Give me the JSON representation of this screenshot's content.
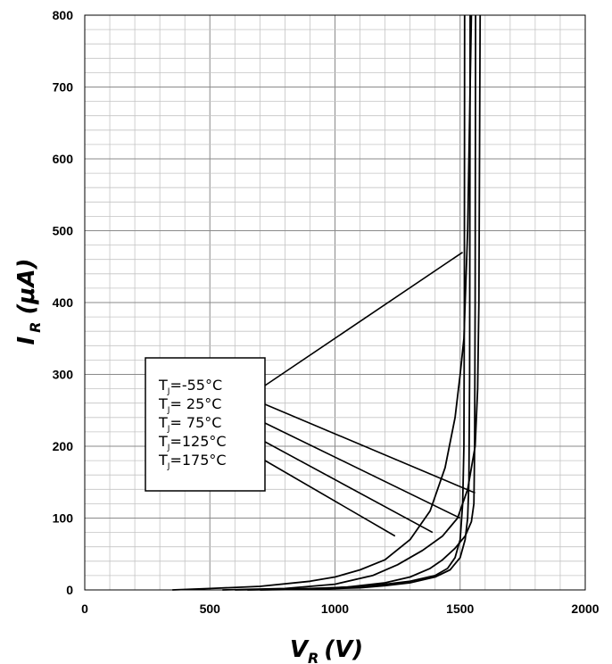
{
  "chart_data": {
    "type": "line",
    "xlabel": {
      "main": "V",
      "sub": "R",
      "unit": "(V)"
    },
    "ylabel": {
      "main": "I",
      "sub": "R",
      "unit": "(μA)"
    },
    "xlim": [
      0,
      2000
    ],
    "ylim": [
      0,
      800
    ],
    "x_ticks": [
      "0",
      "500",
      "1000",
      "1500",
      "2000"
    ],
    "y_ticks": [
      "0",
      "100",
      "200",
      "300",
      "400",
      "500",
      "600",
      "700",
      "800"
    ],
    "grid": {
      "major": true,
      "minor": true,
      "x_minor_step": 100,
      "y_minor_step": 20
    },
    "legend_position": "left-center",
    "series": [
      {
        "name_main": "T",
        "name_sub": "J",
        "name_rest": "=-55°C",
        "points": [
          [
            600,
            0
          ],
          [
            800,
            1
          ],
          [
            1000,
            3
          ],
          [
            1100,
            5
          ],
          [
            1200,
            8
          ],
          [
            1300,
            12
          ],
          [
            1400,
            20
          ],
          [
            1450,
            30
          ],
          [
            1480,
            45
          ],
          [
            1500,
            70
          ],
          [
            1510,
            120
          ],
          [
            1515,
            200
          ],
          [
            1517,
            400
          ],
          [
            1518,
            800
          ]
        ]
      },
      {
        "name_main": "T",
        "name_sub": "J",
        "name_rest": "= 25°C",
        "points": [
          [
            700,
            0
          ],
          [
            900,
            1
          ],
          [
            1100,
            3
          ],
          [
            1200,
            6
          ],
          [
            1300,
            10
          ],
          [
            1400,
            18
          ],
          [
            1460,
            28
          ],
          [
            1500,
            45
          ],
          [
            1520,
            70
          ],
          [
            1530,
            100
          ],
          [
            1535,
            150
          ],
          [
            1538,
            300
          ],
          [
            1540,
            800
          ]
        ]
      },
      {
        "name_main": "T",
        "name_sub": "J",
        "name_rest": "= 75°C",
        "points": [
          [
            650,
            0
          ],
          [
            850,
            1
          ],
          [
            1050,
            4
          ],
          [
            1200,
            10
          ],
          [
            1300,
            18
          ],
          [
            1380,
            30
          ],
          [
            1430,
            42
          ],
          [
            1480,
            58
          ],
          [
            1520,
            75
          ],
          [
            1545,
            95
          ],
          [
            1555,
            120
          ],
          [
            1558,
            200
          ],
          [
            1560,
            400
          ],
          [
            1562,
            800
          ]
        ]
      },
      {
        "name_main": "T",
        "name_sub": "J",
        "name_rest": "=125°C",
        "points": [
          [
            550,
            0
          ],
          [
            800,
            2
          ],
          [
            1000,
            8
          ],
          [
            1150,
            20
          ],
          [
            1250,
            35
          ],
          [
            1350,
            55
          ],
          [
            1430,
            75
          ],
          [
            1490,
            100
          ],
          [
            1530,
            140
          ],
          [
            1560,
            200
          ],
          [
            1570,
            280
          ],
          [
            1575,
            400
          ],
          [
            1580,
            800
          ]
        ]
      },
      {
        "name_main": "T",
        "name_sub": "J",
        "name_rest": "=175°C",
        "points": [
          [
            350,
            0
          ],
          [
            500,
            2
          ],
          [
            700,
            5
          ],
          [
            900,
            12
          ],
          [
            1000,
            18
          ],
          [
            1100,
            28
          ],
          [
            1200,
            42
          ],
          [
            1300,
            70
          ],
          [
            1380,
            110
          ],
          [
            1440,
            170
          ],
          [
            1480,
            240
          ],
          [
            1500,
            300
          ],
          [
            1515,
            350
          ],
          [
            1530,
            500
          ],
          [
            1540,
            700
          ],
          [
            1545,
            800
          ]
        ]
      }
    ],
    "leaders": [
      {
        "legend_row": 0,
        "target": [
          1510,
          470
        ]
      },
      {
        "legend_row": 1,
        "target": [
          1560,
          135
        ]
      },
      {
        "legend_row": 2,
        "target": [
          1500,
          100
        ]
      },
      {
        "legend_row": 3,
        "target": [
          1390,
          80
        ]
      },
      {
        "legend_row": 4,
        "target": [
          1240,
          75
        ]
      }
    ]
  }
}
